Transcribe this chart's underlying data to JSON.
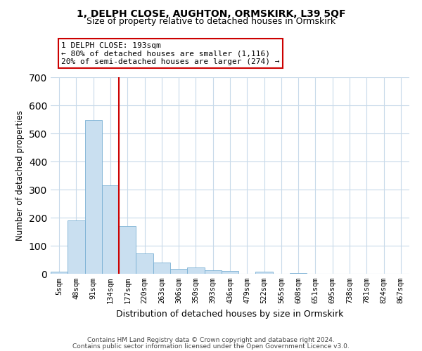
{
  "title": "1, DELPH CLOSE, AUGHTON, ORMSKIRK, L39 5QF",
  "subtitle": "Size of property relative to detached houses in Ormskirk",
  "xlabel": "Distribution of detached houses by size in Ormskirk",
  "ylabel": "Number of detached properties",
  "bar_labels": [
    "5sqm",
    "48sqm",
    "91sqm",
    "134sqm",
    "177sqm",
    "220sqm",
    "263sqm",
    "306sqm",
    "350sqm",
    "393sqm",
    "436sqm",
    "479sqm",
    "522sqm",
    "565sqm",
    "608sqm",
    "651sqm",
    "695sqm",
    "738sqm",
    "781sqm",
    "824sqm",
    "867sqm"
  ],
  "bar_values": [
    8,
    190,
    548,
    315,
    170,
    72,
    40,
    18,
    22,
    12,
    11,
    0,
    8,
    0,
    3,
    0,
    0,
    0,
    0,
    0,
    0
  ],
  "bar_color": "#c9dff0",
  "bar_edge_color": "#7ab0d4",
  "vline_color": "#cc0000",
  "ylim": [
    0,
    700
  ],
  "yticks": [
    0,
    100,
    200,
    300,
    400,
    500,
    600,
    700
  ],
  "annotation_line1": "1 DELPH CLOSE: 193sqm",
  "annotation_line2": "← 80% of detached houses are smaller (1,116)",
  "annotation_line3": "20% of semi-detached houses are larger (274) →",
  "annotation_box_color": "#ffffff",
  "annotation_box_edge": "#cc0000",
  "footnote1": "Contains HM Land Registry data © Crown copyright and database right 2024.",
  "footnote2": "Contains public sector information licensed under the Open Government Licence v3.0.",
  "background_color": "#ffffff",
  "grid_color": "#c8daea"
}
